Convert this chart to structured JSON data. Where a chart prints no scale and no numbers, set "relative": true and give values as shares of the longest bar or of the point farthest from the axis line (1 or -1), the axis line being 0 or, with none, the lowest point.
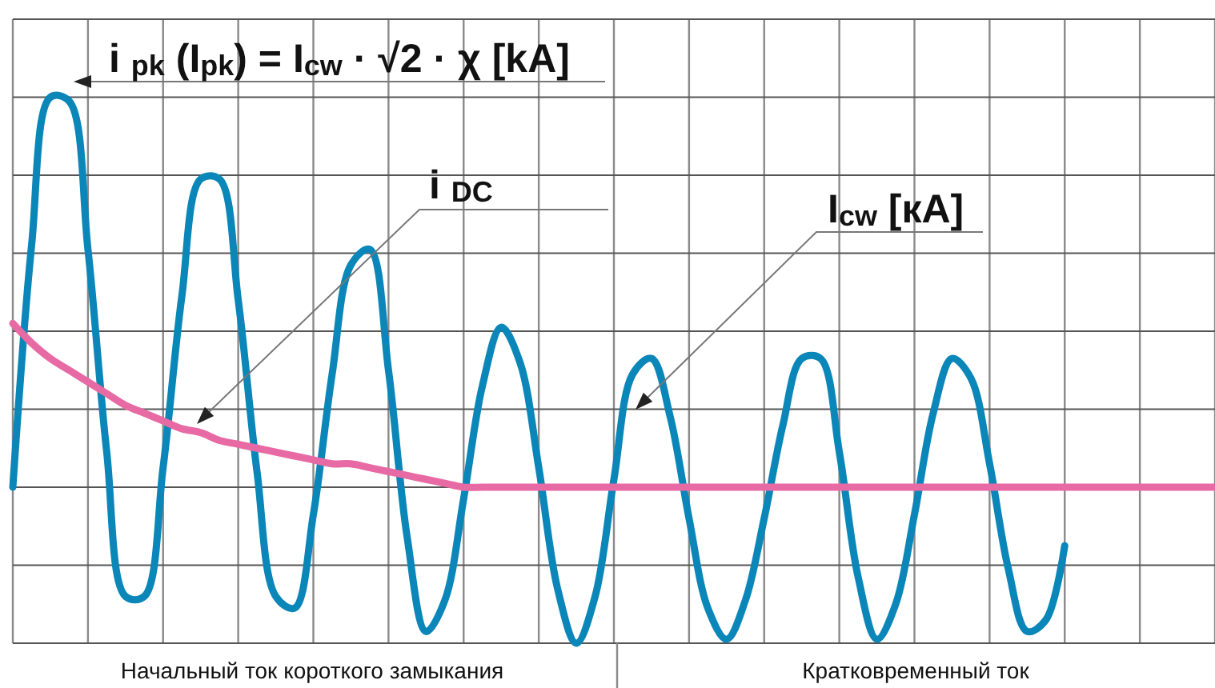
{
  "chart_data": {
    "type": "line",
    "relative": true,
    "grid": true,
    "tick_labels": false,
    "categories": [
      null,
      null,
      null,
      null,
      null,
      null,
      null,
      null,
      null,
      null,
      null,
      null,
      null,
      null,
      null,
      null,
      null,
      null,
      null,
      null,
      null,
      null,
      null,
      null,
      null,
      null,
      null,
      null,
      null,
      null,
      null,
      null,
      null,
      null,
      null,
      null,
      null,
      null,
      null,
      null,
      null,
      null,
      null,
      null,
      null,
      null,
      null,
      null,
      null,
      null,
      null,
      null,
      null,
      null,
      null,
      null,
      null,
      null,
      null,
      null,
      null,
      null,
      null,
      null,
      null
    ],
    "series": [
      {
        "color": "#0a86b8",
        "values": [
          0,
          0.62,
          1,
          0.99,
          0.61,
          0.09,
          -0.28,
          -0.28,
          0.05,
          0.49,
          0.79,
          0.79,
          0.48,
          0.04,
          -0.28,
          -0.31,
          -0.07,
          0.29,
          0.57,
          0.61,
          0.3,
          -0.13,
          -0.37,
          -0.29,
          -0.03,
          0.26,
          0.41,
          0.32,
          0.05,
          -0.26,
          -0.4,
          -0.28,
          0.02,
          0.29,
          0.33,
          0.18,
          -0.08,
          -0.31,
          -0.39,
          -0.29,
          -0.08,
          0.16,
          0.33,
          0.33,
          0.09,
          -0.23,
          -0.39,
          -0.3,
          -0.07,
          0.19,
          0.33,
          0.28,
          0.06,
          -0.21,
          -0.37,
          -0.34,
          -0.15,
          null,
          null,
          null,
          null,
          null,
          null,
          null,
          null
        ]
      },
      {
        "color": "#e86aa4",
        "values": [
          0.42,
          0.37,
          0.33,
          0.3,
          0.27,
          0.24,
          0.21,
          0.19,
          0.17,
          0.15,
          0.14,
          0.12,
          0.11,
          0.1,
          0.09,
          0.08,
          0.07,
          0.06,
          0.06,
          0.05,
          0.04,
          0.03,
          0.02,
          0.01,
          0,
          0,
          0,
          0,
          0,
          0,
          0,
          0,
          0,
          0,
          0,
          0,
          0,
          0,
          0,
          0,
          0,
          0,
          0,
          0,
          0,
          0,
          0,
          0,
          0,
          0,
          0,
          0,
          0,
          0,
          0,
          0,
          0,
          0,
          0,
          0,
          0,
          0,
          0,
          0,
          0
        ]
      }
    ],
    "annotations": [
      "i $_{pk}$ (I$_{pk}$) = I$_{cw}$ · √2 · χ [kA]",
      "i $_{DC}$",
      "I$_{cw}$ [кA]",
      "Начальный ток короткого замыкания",
      "Кратковременный ток"
    ]
  }
}
